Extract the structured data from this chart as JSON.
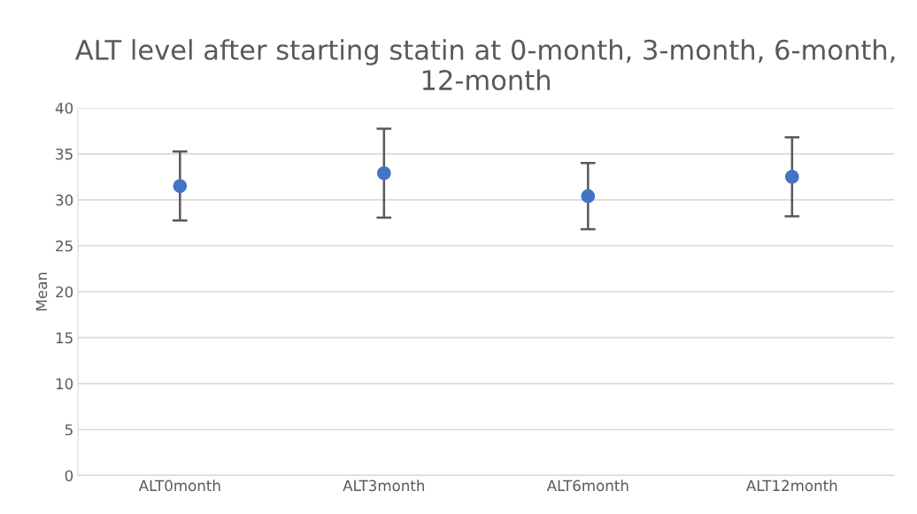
{
  "chart_data": {
    "type": "scatter",
    "title": "ALT level after starting statin at 0-month, 3-month, 6-month, 12-month",
    "ylabel": "Mean",
    "categories": [
      "ALT0month",
      "ALT3month",
      "ALT6month",
      "ALT12month"
    ],
    "series": [
      {
        "color": "#4472c4",
        "values": [
          31.5,
          32.9,
          30.4,
          32.5
        ],
        "errors": [
          3.75,
          4.85,
          3.6,
          4.3
        ]
      }
    ],
    "ylim": [
      0,
      40
    ],
    "yticks": [
      0,
      5,
      10,
      15,
      20,
      25,
      30,
      35,
      40
    ],
    "grid": "y",
    "marker": "circle"
  }
}
